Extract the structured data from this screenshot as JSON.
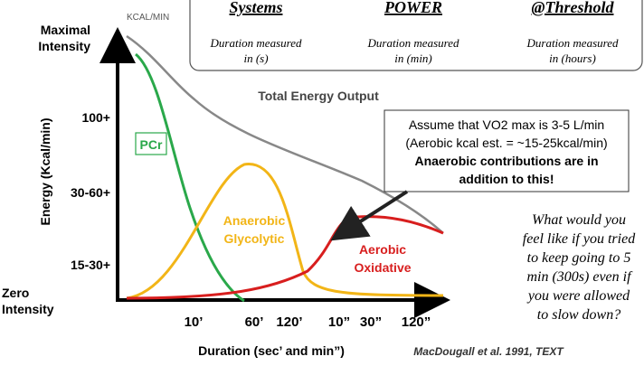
{
  "header": {
    "columns": [
      {
        "title": "Systems",
        "lines": [
          "Duration measured",
          "in (s)"
        ]
      },
      {
        "title": "POWER",
        "lines": [
          "Duration measured",
          "in (min)"
        ]
      },
      {
        "title": "@Threshold",
        "lines": [
          "Duration measured",
          "in (hours)"
        ]
      }
    ]
  },
  "y_axis": {
    "unit": "KCAL/MIN",
    "title": "Energy (Kcal/min)",
    "max_label": [
      "Maximal",
      "Intensity"
    ],
    "levels": [
      "100+",
      "30-60+",
      "15-30+"
    ],
    "zero_label": [
      "Zero",
      "Intensity"
    ]
  },
  "x_axis": {
    "title": "Duration (sec’ and min”)",
    "ticks": [
      "10’",
      "60’",
      "120’",
      "10”",
      "30”",
      "120”"
    ]
  },
  "curves": {
    "total": "Total Energy Output",
    "pcr": "PCr",
    "glycolytic": [
      "Anaerobic",
      "Glycolytic"
    ],
    "aerobic": [
      "Aerobic",
      "Oxidative"
    ]
  },
  "note_box": [
    "Assume that VO2 max is 3-5 L/min",
    "(Aerobic kcal est. = ~15-25kcal/min)",
    "Anaerobic contributions are in",
    "addition to this!"
  ],
  "question": [
    "What would you",
    "feel like if you tried",
    "to keep going to 5",
    "min (300s) even if",
    "you were allowed",
    "to slow down?"
  ],
  "citation": "MacDougall et al. 1991, TEXT"
}
